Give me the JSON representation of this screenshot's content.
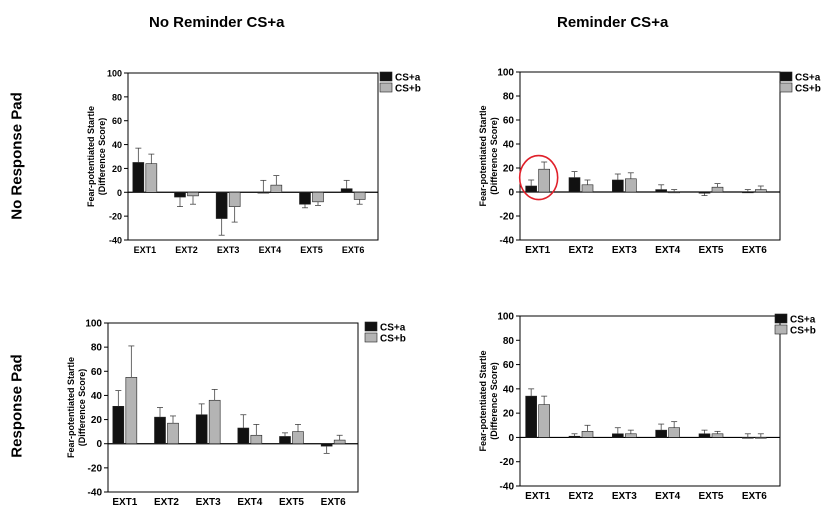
{
  "column_titles": [
    "No Reminder CS+a",
    "Reminder CS+a"
  ],
  "row_titles": [
    "No Response Pad",
    "Response Pad"
  ],
  "colors": {
    "cs_a": "#111111",
    "cs_b": "#b4b4b4",
    "highlight": "#e0202a"
  },
  "chart_data": [
    {
      "type": "bar",
      "panel": "No Reminder CS+a / No Response Pad",
      "categories": [
        "EXT1",
        "EXT2",
        "EXT3",
        "EXT4",
        "EXT5",
        "EXT6"
      ],
      "ylabel": "Fear-potentiated Startle\n(Difference Score)",
      "ylim": [
        -40,
        100
      ],
      "yticks": [
        -40,
        -20,
        0,
        20,
        40,
        60,
        80,
        100
      ],
      "legend": "top-right",
      "series": [
        {
          "name": "CS+a",
          "values": [
            25,
            -4,
            -22,
            0,
            -10,
            3
          ],
          "errors": [
            12,
            8,
            14,
            10,
            3,
            7
          ]
        },
        {
          "name": "CS+b",
          "values": [
            24,
            -3,
            -12,
            6,
            -8,
            -6
          ],
          "errors": [
            8,
            7,
            13,
            8,
            3,
            4
          ]
        }
      ]
    },
    {
      "type": "bar",
      "panel": "Reminder CS+a / No Response Pad",
      "categories": [
        "EXT1",
        "EXT2",
        "EXT3",
        "EXT4",
        "EXT5",
        "EXT6"
      ],
      "ylabel": "Fear-potentiated Startle\n(Difference Score)",
      "ylim": [
        -40,
        100
      ],
      "yticks": [
        -40,
        -20,
        0,
        20,
        40,
        60,
        80,
        100
      ],
      "legend": "top-right",
      "highlight_category": "EXT1",
      "series": [
        {
          "name": "CS+a",
          "values": [
            5,
            12,
            10,
            2,
            -1,
            0
          ],
          "errors": [
            5,
            5,
            5,
            4,
            2,
            2
          ]
        },
        {
          "name": "CS+b",
          "values": [
            19,
            6,
            11,
            0,
            4,
            2
          ],
          "errors": [
            6,
            4,
            5,
            2,
            3,
            3
          ]
        }
      ]
    },
    {
      "type": "bar",
      "panel": "No Reminder CS+a / Response Pad",
      "categories": [
        "EXT1",
        "EXT2",
        "EXT3",
        "EXT4",
        "EXT5",
        "EXT6"
      ],
      "ylabel": "Fear-potentiated Startle\n(Difference Score)",
      "ylim": [
        -40,
        100
      ],
      "yticks": [
        -40,
        -20,
        0,
        20,
        40,
        60,
        80,
        100
      ],
      "legend": "top-right",
      "series": [
        {
          "name": "CS+a",
          "values": [
            31,
            22,
            24,
            13,
            6,
            -2
          ],
          "errors": [
            13,
            8,
            9,
            11,
            3,
            6
          ]
        },
        {
          "name": "CS+b",
          "values": [
            55,
            17,
            36,
            7,
            10,
            3
          ],
          "errors": [
            26,
            6,
            9,
            9,
            6,
            4
          ]
        }
      ]
    },
    {
      "type": "bar",
      "panel": "Reminder CS+a / Response Pad",
      "categories": [
        "EXT1",
        "EXT2",
        "EXT3",
        "EXT4",
        "EXT5",
        "EXT6"
      ],
      "ylabel": "Fear-potentiated Startle\n(Difference Score)",
      "ylim": [
        -40,
        100
      ],
      "yticks": [
        -40,
        -20,
        0,
        20,
        40,
        60,
        80,
        100
      ],
      "legend": "top-right",
      "series": [
        {
          "name": "CS+a",
          "values": [
            34,
            1,
            3,
            6,
            3,
            0
          ],
          "errors": [
            6,
            2,
            5,
            5,
            3,
            3
          ]
        },
        {
          "name": "CS+b",
          "values": [
            27,
            5,
            3,
            8,
            3,
            0
          ],
          "errors": [
            7,
            5,
            3,
            5,
            2,
            3
          ]
        }
      ]
    }
  ]
}
